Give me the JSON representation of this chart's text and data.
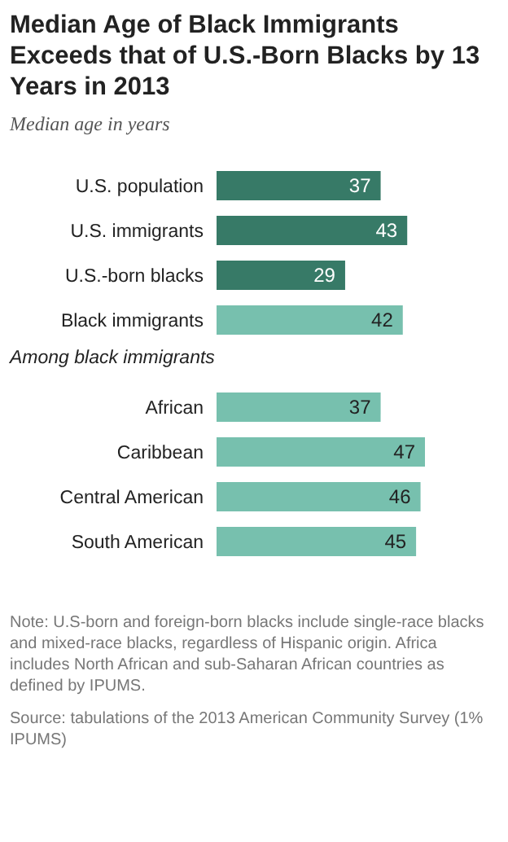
{
  "chart_data": {
    "type": "bar",
    "orientation": "horizontal",
    "title": "Median Age of Black Immigrants Exceeds that of U.S.-Born Blacks by 13 Years in 2013",
    "subtitle": "Median age in years",
    "categories": [
      "U.S. population",
      "U.S. immigrants",
      "U.S.-born blacks",
      "Black immigrants",
      "African",
      "Caribbean",
      "Central American",
      "South American"
    ],
    "values": [
      37,
      43,
      29,
      42,
      37,
      47,
      46,
      45
    ],
    "colors": [
      "#377a67",
      "#377a67",
      "#377a67",
      "#77c0ae",
      "#77c0ae",
      "#77c0ae",
      "#77c0ae",
      "#77c0ae"
    ],
    "data_labels": true,
    "annotations": [
      "Among black immigrants",
      "Note: U.S-born and foreign-born blacks include single-race blacks and mixed-race blacks, regardless of Hispanic origin. Africa includes North African and sub-Saharan African countries as defined by IPUMS.",
      "Source: tabulations of the 2013 American Community Survey (1% IPUMS)"
    ]
  }
}
